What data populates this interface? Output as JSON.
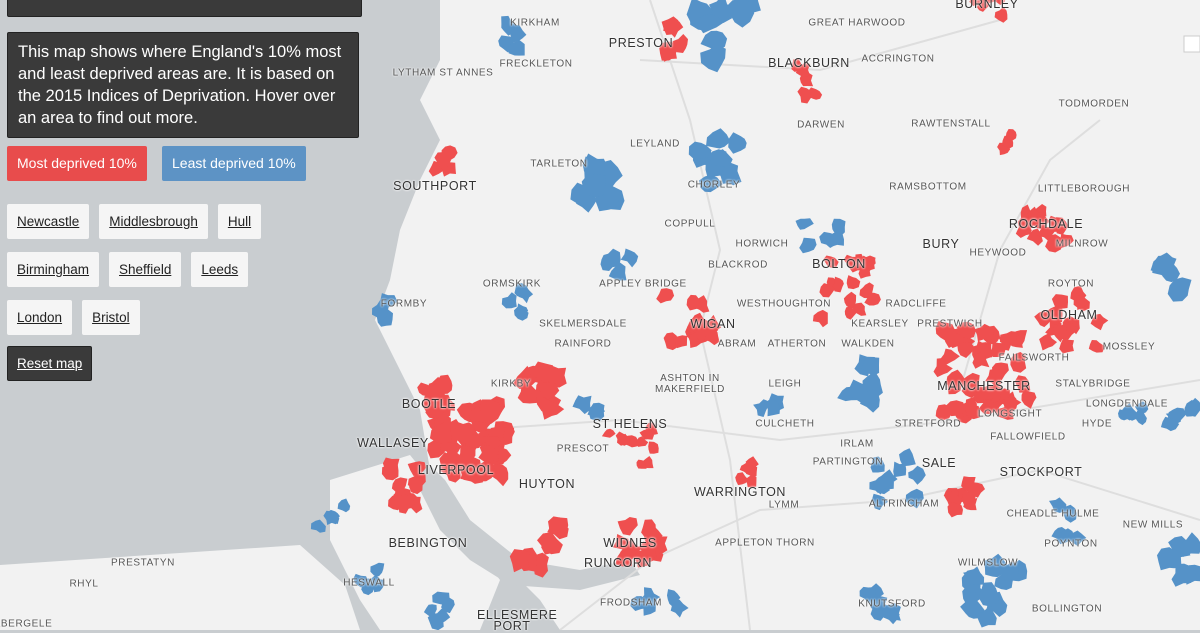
{
  "sidebar": {
    "intro": "This map shows where England's 10% most and least deprived areas are. It is based on the 2015 Indices of Deprivation. Hover over an area to find out more.",
    "legend": [
      "Most deprived 10%",
      "Least deprived 10%"
    ],
    "cities": [
      [
        "Newcastle",
        "Middlesbrough",
        "Hull"
      ],
      [
        "Birmingham",
        "Sheffield",
        "Leeds"
      ],
      [
        "London",
        "Bristol"
      ]
    ],
    "reset": "Reset map"
  },
  "map": {
    "places": [
      "BURNLEY",
      "KIRKHAM",
      "GREAT HARWOOD",
      "PRESTON",
      "FRECKLETON",
      "BLACKBURN",
      "ACCRINGTON",
      "LYTHAM ST ANNES",
      "TODMORDEN",
      "DARWEN",
      "RAWTENSTALL",
      "LEYLAND",
      "TARLETON",
      "SOUTHPORT",
      "CHORLEY",
      "RAMSBOTTOM",
      "LITTLEBOROUGH",
      "COPPULL",
      "ROCHDALE",
      "HORWICH",
      "BURY",
      "MILNROW",
      "HEYWOOD",
      "BLACKROD",
      "BOLTON",
      "ORMSKIRK",
      "APPLEY BRIDGE",
      "ROYTON",
      "FORMBY",
      "WESTHOUGHTON",
      "RADCLIFFE",
      "OLDHAM",
      "SKELMERSDALE",
      "WIGAN",
      "KEARSLEY",
      "PRESTWICH",
      "RAINFORD",
      "ABRAM",
      "ATHERTON",
      "WALKDEN",
      "MOSSLEY",
      "FAILSWORTH",
      "KIRKBY",
      "ASHTON IN MAKERFIELD",
      "LEIGH",
      "MANCHESTER",
      "STALYBRIDGE",
      "BOOTLE",
      "LONGDENDALE",
      "LONGSIGHT",
      "ST HELENS",
      "CULCHETH",
      "STRETFORD",
      "HYDE",
      "WALLASEY",
      "FALLOWFIELD",
      "IRLAM",
      "PRESCOT",
      "PARTINGTON",
      "SALE",
      "STOCKPORT",
      "LIVERPOOL",
      "HUYTON",
      "WARRINGTON",
      "LYMM",
      "ALTRINCHAM",
      "CHEADLE HULME",
      "NEW MILLS",
      "BEBINGTON",
      "WIDNES",
      "APPLETON THORN",
      "POYNTON",
      "PRESTATYN",
      "RUNCORN",
      "WILMSLOW",
      "RHYL",
      "HESWALL",
      "FRODSHAM",
      "KNUTSFORD",
      "BOLLINGTON",
      "ELLESMERE PORT",
      "ABERGELE"
    ]
  }
}
